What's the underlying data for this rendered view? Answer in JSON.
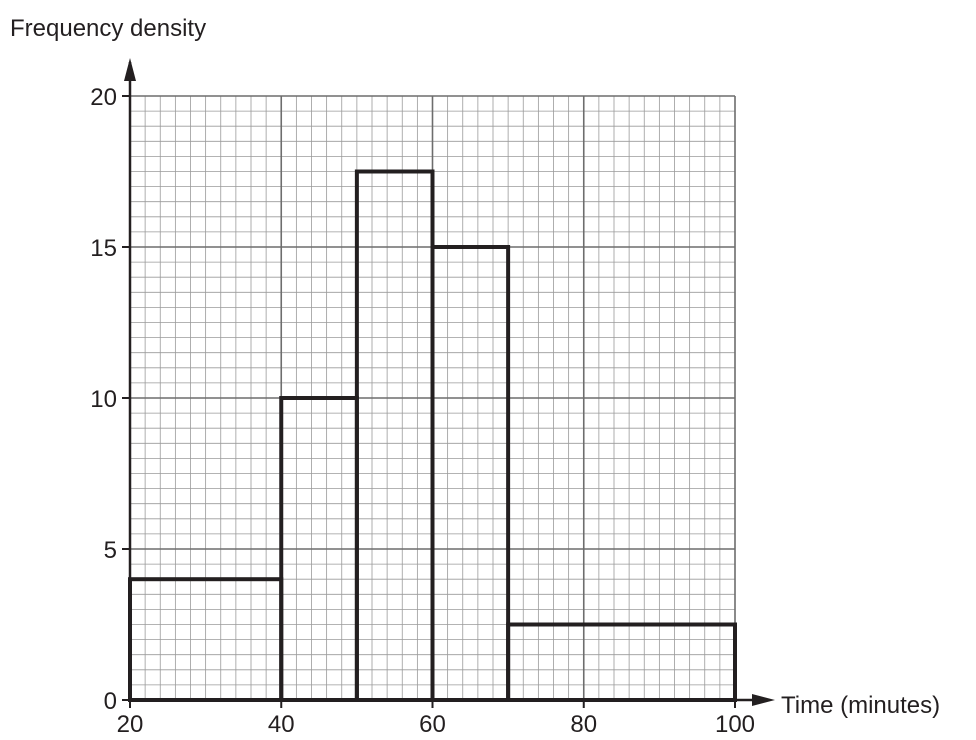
{
  "chart_data": {
    "type": "histogram",
    "title": "",
    "xlabel": "Time (minutes)",
    "ylabel": "Frequency density",
    "xlim": [
      20,
      100
    ],
    "ylim": [
      0,
      20
    ],
    "x_ticks": [
      20,
      40,
      60,
      80,
      100
    ],
    "y_ticks": [
      0,
      5,
      10,
      15,
      20
    ],
    "minor_grid_step_x": 2,
    "minor_grid_step_y": 0.5,
    "major_grid_step_x": 20,
    "major_grid_step_y": 5,
    "grid": true,
    "bars": [
      {
        "x0": 20,
        "x1": 40,
        "value": 4
      },
      {
        "x0": 40,
        "x1": 50,
        "value": 10
      },
      {
        "x0": 50,
        "x1": 60,
        "value": 17.5
      },
      {
        "x0": 60,
        "x1": 70,
        "value": 15
      },
      {
        "x0": 70,
        "x1": 100,
        "value": 2.5
      }
    ],
    "colors": {
      "minor_grid": "#9a9a9a",
      "major_grid": "#6d6d6d",
      "bar_outline": "#231f20",
      "axis": "#231f20",
      "text": "#231f20"
    }
  }
}
